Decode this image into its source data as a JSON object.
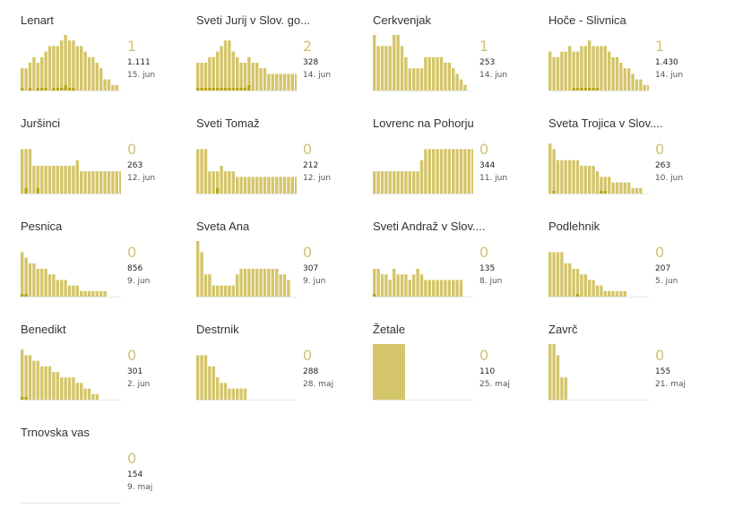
{
  "colors": {
    "bar": "#d4c56a",
    "bar_dark": "#b9a318",
    "baseline": "#e6e6e6",
    "accent_text": "#d1c170"
  },
  "chart_data": [
    {
      "type": "bar",
      "title": "Lenart",
      "new_cases": "1",
      "total": "1.111",
      "date": "15. jun",
      "values": [
        4,
        4,
        5,
        6,
        5,
        6,
        7,
        8,
        8,
        8,
        9,
        10,
        9,
        9,
        8,
        8,
        7,
        6,
        6,
        5,
        4,
        2,
        2,
        1,
        1
      ],
      "highlights": [
        1,
        0,
        1,
        0,
        1,
        1,
        1,
        0,
        1,
        1,
        1,
        2,
        1,
        1,
        0,
        0,
        0,
        0,
        0,
        0,
        0,
        0,
        0,
        0,
        0
      ]
    },
    {
      "type": "bar",
      "title": "Sveti Jurij v Slov. go...",
      "new_cases": "2",
      "total": "328",
      "date": "14. jun",
      "values": [
        5,
        5,
        5,
        6,
        6,
        7,
        8,
        9,
        9,
        7,
        6,
        5,
        5,
        6,
        5,
        5,
        4,
        4,
        3,
        3,
        3,
        3,
        3,
        3,
        3,
        3,
        3
      ],
      "highlights": [
        1,
        1,
        1,
        1,
        1,
        1,
        1,
        1,
        1,
        1,
        1,
        1,
        1,
        2,
        0,
        0,
        0,
        0,
        0,
        0,
        0,
        0,
        0,
        0,
        0,
        0,
        0
      ]
    },
    {
      "type": "bar",
      "title": "Cerkvenjak",
      "new_cases": "1",
      "total": "253",
      "date": "14. jun",
      "values": [
        10,
        8,
        8,
        8,
        8,
        10,
        10,
        8,
        6,
        4,
        4,
        4,
        4,
        6,
        6,
        6,
        6,
        6,
        5,
        5,
        4,
        3,
        2,
        1
      ],
      "highlights": [
        0,
        0,
        0,
        0,
        0,
        0,
        0,
        0,
        0,
        0,
        0,
        0,
        0,
        0,
        0,
        0,
        0,
        0,
        0,
        0,
        0,
        0,
        0,
        0
      ]
    },
    {
      "type": "bar",
      "title": "Hoče - Slivnica",
      "new_cases": "1",
      "total": "1.430",
      "date": "14. jun",
      "values": [
        7,
        6,
        6,
        7,
        7,
        8,
        7,
        7,
        8,
        8,
        9,
        8,
        8,
        8,
        8,
        7,
        6,
        6,
        5,
        4,
        4,
        3,
        2,
        2,
        1,
        1
      ],
      "highlights": [
        0,
        0,
        0,
        0,
        0,
        0,
        1,
        1,
        1,
        1,
        1,
        1,
        1,
        0,
        0,
        0,
        0,
        0,
        0,
        0,
        0,
        0,
        0,
        0,
        0,
        0
      ]
    },
    {
      "type": "bar",
      "title": "Juršinci",
      "new_cases": "0",
      "total": "263",
      "date": "12. jun",
      "values": [
        8,
        8,
        8,
        5,
        5,
        5,
        5,
        5,
        5,
        5,
        5,
        5,
        5,
        5,
        6,
        4,
        4,
        4,
        4,
        4,
        4,
        4,
        4,
        4,
        4,
        4,
        4
      ],
      "highlights": [
        0,
        2,
        0,
        0,
        2,
        0,
        0,
        0,
        0,
        0,
        0,
        0,
        0,
        0,
        0,
        0,
        0,
        0,
        0,
        0,
        0,
        0,
        0,
        0,
        0,
        0,
        0
      ]
    },
    {
      "type": "bar",
      "title": "Sveti Tomaž",
      "new_cases": "0",
      "total": "212",
      "date": "12. jun",
      "values": [
        8,
        8,
        8,
        4,
        4,
        4,
        5,
        4,
        4,
        4,
        3,
        3,
        3,
        3,
        3,
        3,
        3,
        3,
        3,
        3,
        3,
        3,
        3,
        3,
        3,
        3,
        3
      ],
      "highlights": [
        0,
        0,
        0,
        0,
        0,
        2,
        0,
        0,
        0,
        0,
        0,
        0,
        0,
        0,
        0,
        0,
        0,
        0,
        0,
        0,
        0,
        0,
        0,
        0,
        0,
        0,
        0
      ]
    },
    {
      "type": "bar",
      "title": "Lovrenc na Pohorju",
      "new_cases": "0",
      "total": "344",
      "date": "11. jun",
      "values": [
        4,
        4,
        4,
        4,
        4,
        4,
        4,
        4,
        4,
        4,
        4,
        4,
        6,
        8,
        8,
        8,
        8,
        8,
        8,
        8,
        8,
        8,
        8,
        8,
        8,
        8
      ],
      "highlights": [
        0,
        0,
        0,
        0,
        0,
        0,
        0,
        0,
        0,
        0,
        0,
        0,
        0,
        0,
        0,
        0,
        0,
        0,
        0,
        0,
        0,
        0,
        0,
        0,
        0,
        0
      ]
    },
    {
      "type": "bar",
      "title": "Sveta Trojica v Slov....",
      "new_cases": "0",
      "total": "263",
      "date": "10. jun",
      "values": [
        9,
        8,
        6,
        6,
        6,
        6,
        6,
        6,
        5,
        5,
        5,
        5,
        4,
        3,
        3,
        3,
        2,
        2,
        2,
        2,
        2,
        1,
        1,
        1
      ],
      "highlights": [
        0,
        1,
        0,
        0,
        0,
        0,
        0,
        0,
        0,
        0,
        0,
        0,
        0,
        1,
        1,
        0,
        0,
        0,
        0,
        0,
        0,
        0,
        0,
        0
      ]
    },
    {
      "type": "bar",
      "title": "Pesnica",
      "new_cases": "0",
      "total": "856",
      "date": "9. jun",
      "values": [
        8,
        7,
        6,
        6,
        5,
        5,
        5,
        4,
        4,
        3,
        3,
        3,
        2,
        2,
        2,
        1,
        1,
        1,
        1,
        1,
        1,
        1
      ],
      "highlights": [
        1,
        1,
        0,
        0,
        0,
        0,
        0,
        0,
        0,
        0,
        0,
        0,
        0,
        0,
        0,
        0,
        0,
        0,
        0,
        0,
        0,
        0
      ]
    },
    {
      "type": "bar",
      "title": "Sveta Ana",
      "new_cases": "0",
      "total": "307",
      "date": "9. jun",
      "values": [
        10,
        8,
        4,
        4,
        2,
        2,
        2,
        2,
        2,
        2,
        4,
        5,
        5,
        5,
        5,
        5,
        5,
        5,
        5,
        5,
        5,
        4,
        4,
        3
      ],
      "highlights": [
        0,
        0,
        0,
        0,
        0,
        0,
        0,
        0,
        0,
        0,
        0,
        0,
        0,
        0,
        0,
        0,
        0,
        0,
        0,
        0,
        0,
        0,
        0,
        0
      ]
    },
    {
      "type": "bar",
      "title": "Sveti Andraž v Slov....",
      "new_cases": "0",
      "total": "135",
      "date": "8. jun",
      "values": [
        5,
        5,
        4,
        4,
        3,
        5,
        4,
        4,
        4,
        3,
        4,
        5,
        4,
        3,
        3,
        3,
        3,
        3,
        3,
        3,
        3,
        3,
        3
      ],
      "highlights": [
        1,
        0,
        0,
        0,
        0,
        0,
        0,
        0,
        0,
        0,
        0,
        0,
        0,
        0,
        0,
        0,
        0,
        0,
        0,
        0,
        0,
        0,
        0
      ]
    },
    {
      "type": "bar",
      "title": "Podlehnik",
      "new_cases": "0",
      "total": "207",
      "date": "5. jun",
      "values": [
        8,
        8,
        8,
        8,
        6,
        6,
        5,
        5,
        4,
        4,
        3,
        3,
        2,
        2,
        1,
        1,
        1,
        1,
        1,
        1
      ],
      "highlights": [
        0,
        0,
        0,
        0,
        0,
        0,
        0,
        1,
        0,
        0,
        0,
        0,
        0,
        0,
        0,
        0,
        0,
        0,
        0,
        0
      ]
    },
    {
      "type": "bar",
      "title": "Benedikt",
      "new_cases": "0",
      "total": "301",
      "date": "2. jun",
      "values": [
        9,
        8,
        8,
        7,
        7,
        6,
        6,
        6,
        5,
        5,
        4,
        4,
        4,
        4,
        3,
        3,
        2,
        2,
        1,
        1
      ],
      "highlights": [
        1,
        1,
        0,
        0,
        0,
        0,
        0,
        0,
        0,
        0,
        0,
        0,
        0,
        0,
        0,
        0,
        0,
        0,
        0,
        0
      ]
    },
    {
      "type": "bar",
      "title": "Destrnik",
      "new_cases": "0",
      "total": "288",
      "date": "28. maj",
      "values": [
        8,
        8,
        8,
        6,
        6,
        4,
        3,
        3,
        2,
        2,
        2,
        2,
        2
      ],
      "highlights": [
        0,
        0,
        0,
        0,
        0,
        0,
        0,
        0,
        0,
        0,
        0,
        0,
        0
      ]
    },
    {
      "type": "bar",
      "title": "Žetale",
      "new_cases": "0",
      "total": "110",
      "date": "25. maj",
      "values": [
        10,
        10,
        10,
        10,
        10,
        10,
        10,
        10,
        10
      ],
      "highlights": [
        0,
        0,
        0,
        0,
        0,
        0,
        0,
        0,
        0
      ]
    },
    {
      "type": "bar",
      "title": "Zavrč",
      "new_cases": "0",
      "total": "155",
      "date": "21. maj",
      "values": [
        10,
        10,
        8,
        4,
        4
      ],
      "highlights": [
        0,
        0,
        0,
        0,
        0
      ]
    },
    {
      "type": "bar",
      "title": "Trnovska vas",
      "new_cases": "0",
      "total": "154",
      "date": "9. maj",
      "values": [],
      "highlights": []
    }
  ]
}
